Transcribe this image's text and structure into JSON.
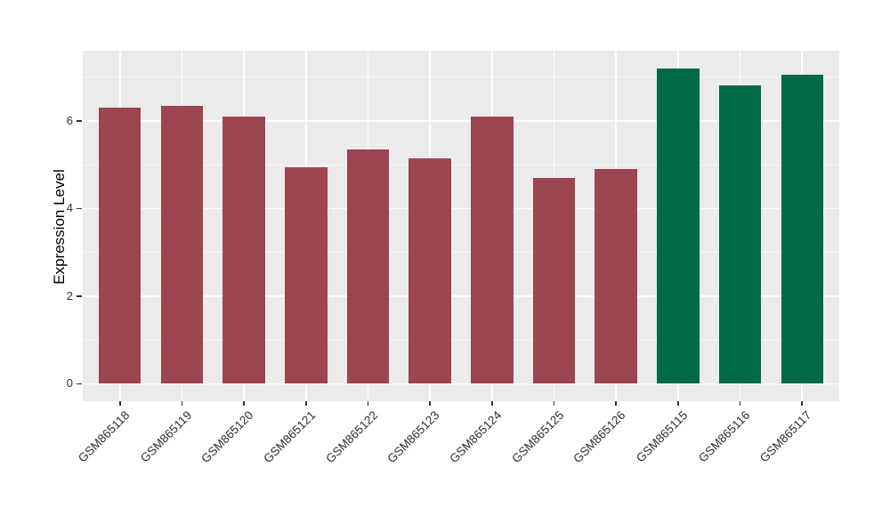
{
  "chart_data": {
    "type": "bar",
    "title": "",
    "xlabel": "",
    "ylabel": "Expression Level",
    "categories": [
      "GSM865118",
      "GSM865119",
      "GSM865120",
      "GSM865121",
      "GSM865122",
      "GSM865123",
      "GSM865124",
      "GSM865125",
      "GSM865126",
      "GSM865115",
      "GSM865116",
      "GSM865117"
    ],
    "values": [
      6.3,
      6.35,
      6.1,
      4.95,
      5.35,
      5.15,
      6.1,
      4.7,
      4.9,
      7.2,
      6.8,
      7.05
    ],
    "bar_colors": [
      "#9D4451",
      "#9D4451",
      "#9D4451",
      "#9D4451",
      "#9D4451",
      "#9D4451",
      "#9D4451",
      "#9D4451",
      "#9D4451",
      "#026A48",
      "#026A48",
      "#026A48"
    ],
    "group_colors": {
      "red_group": "#9D4451",
      "green_group": "#026A48"
    },
    "groups": [
      "red_group",
      "red_group",
      "red_group",
      "red_group",
      "red_group",
      "red_group",
      "red_group",
      "red_group",
      "red_group",
      "green_group",
      "green_group",
      "green_group"
    ],
    "yticks": [
      0,
      2,
      4,
      6
    ],
    "yticks_minor": [
      1,
      3,
      5,
      7
    ],
    "ylim": [
      -0.4,
      7.6
    ],
    "legend_position": "none",
    "grid": "on",
    "panel_background": "#EBEBEB",
    "grid_color": "#FFFFFF",
    "axis_text_color": "#303030"
  }
}
